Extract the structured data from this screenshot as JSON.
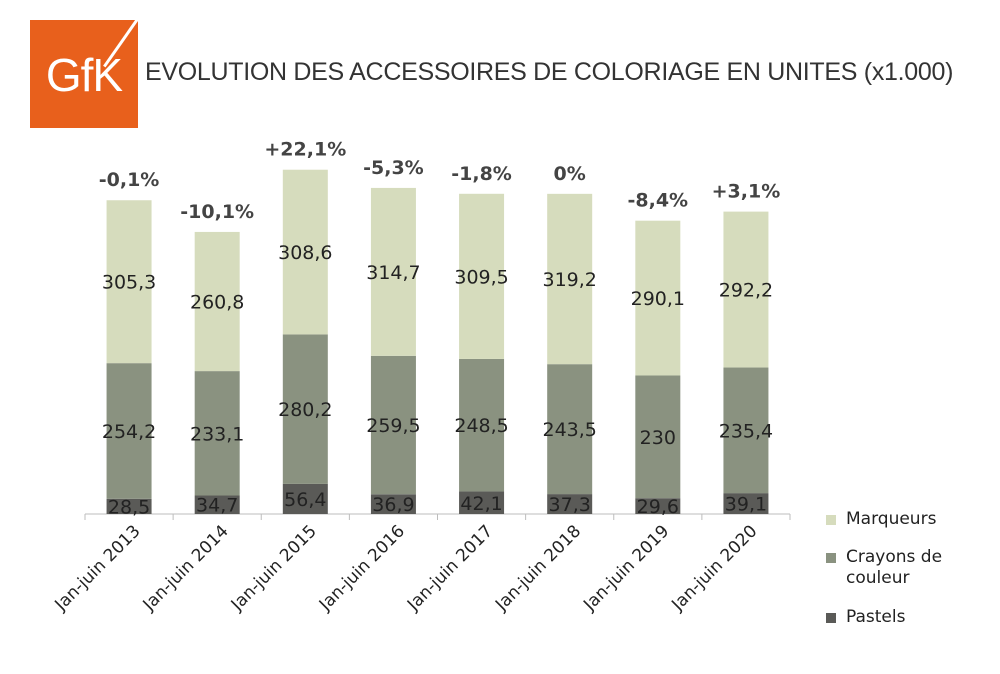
{
  "brand": {
    "logo_text": "GfK",
    "logo_color": "#e8601c"
  },
  "chart_data": {
    "type": "bar",
    "stacked": true,
    "title": "EVOLUTION DES ACCESSOIRES DE COLORIAGE EN UNITES (x1.000)",
    "categories": [
      "Jan-juin 2013",
      "Jan-juin 2014",
      "Jan-juin 2015",
      "Jan-juin 2016",
      "Jan-juin 2017",
      "Jan-juin 2018",
      "Jan-juin 2019",
      "Jan-juin 2020"
    ],
    "series": [
      {
        "name": "Pastels",
        "color": "#5a5a57",
        "values": [
          28.5,
          34.7,
          56.4,
          36.9,
          42.1,
          37.3,
          29.6,
          39.1
        ],
        "labels": [
          "28,5",
          "34,7",
          "56,4",
          "36,9",
          "42,1",
          "37,3",
          "29,6",
          "39,1"
        ]
      },
      {
        "name": "Crayons de couleur",
        "color": "#8a9280",
        "values": [
          254.2,
          233.1,
          280.2,
          259.5,
          248.5,
          243.5,
          230,
          235.4
        ],
        "labels": [
          "254,2",
          "233,1",
          "280,2",
          "259,5",
          "248,5",
          "243,5",
          "230",
          "235,4"
        ]
      },
      {
        "name": "Marqueurs",
        "color": "#d6dcbd",
        "values": [
          305.3,
          260.8,
          308.6,
          314.7,
          309.5,
          319.2,
          290.1,
          292.2
        ],
        "labels": [
          "305,3",
          "260,8",
          "308,6",
          "314,7",
          "309,5",
          "319,2",
          "290,1",
          "292,2"
        ]
      }
    ],
    "growth_labels": [
      "-0,1%",
      "-10,1%",
      "+22,1%",
      "-5,3%",
      "-1,8%",
      "0%",
      "-8,4%",
      "+3,1%"
    ],
    "legend": {
      "position": "right",
      "items": [
        "Marqueurs",
        "Crayons de couleur",
        "Pastels"
      ]
    },
    "ylim": [
      0,
      650
    ],
    "grid": false
  }
}
